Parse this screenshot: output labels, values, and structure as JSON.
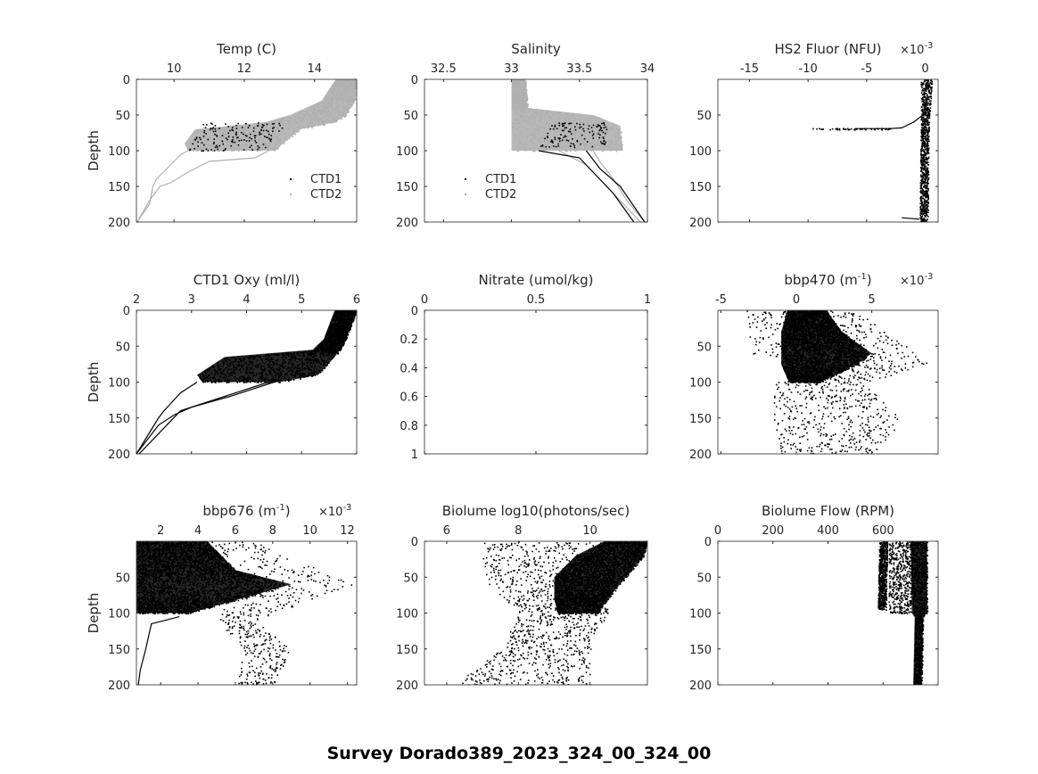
{
  "title": "Survey Dorado389_2023_324_00_324_00",
  "chart_data": [
    {
      "type": "scatter",
      "title": "Temp (C)",
      "xlabel": "Temp (C)",
      "ylabel": "Depth",
      "xlim": [
        8.93,
        15.2
      ],
      "ylim": [
        0,
        200
      ],
      "xticks": [
        10,
        12,
        14
      ],
      "yticks": [
        0,
        50,
        100,
        150,
        200
      ],
      "legend": {
        "position": "inside-lower-right",
        "entries": [
          "CTD1",
          "CTD2"
        ]
      },
      "series": [
        {
          "name": "CTD2",
          "color": "#b0b0b0",
          "band": [
            [
              0,
              14.6,
              15.2
            ],
            [
              30,
              14.2,
              15.15
            ],
            [
              50,
              13.3,
              14.9
            ],
            [
              60,
              12.6,
              14.6
            ],
            [
              70,
              10.6,
              13.6
            ],
            [
              90,
              10.3,
              13.1
            ],
            [
              100,
              10.4,
              12.9
            ]
          ],
          "n": 1400,
          "lines": [
            [
              [
                100,
                10.4
              ],
              [
                105,
                10.2
              ],
              [
                120,
                9.9
              ],
              [
                140,
                9.5
              ],
              [
                150,
                9.4
              ],
              [
                175,
                9.3
              ],
              [
                200,
                8.95
              ]
            ],
            [
              [
                100,
                12.7
              ],
              [
                110,
                12.3
              ],
              [
                115,
                11
              ],
              [
                130,
                10.4
              ],
              [
                145,
                9.9
              ],
              [
                150,
                9.6
              ],
              [
                170,
                9.3
              ],
              [
                200,
                8.95
              ]
            ]
          ]
        },
        {
          "name": "CTD1",
          "color": "#000000",
          "band": [
            [
              60,
              10.8,
              13.2
            ],
            [
              100,
              10.4,
              12.5
            ]
          ],
          "n": 150,
          "lines": []
        }
      ]
    },
    {
      "type": "scatter",
      "title": "Salinity",
      "xlabel": "Salinity",
      "ylabel": "",
      "xlim": [
        32.36,
        34
      ],
      "ylim": [
        0,
        200
      ],
      "xticks": [
        32.5,
        33,
        33.5,
        34
      ],
      "yticks": [
        0,
        50,
        100,
        150,
        200
      ],
      "legend": {
        "position": "inside-lower-left",
        "entries": [
          "CTD1",
          "CTD2"
        ]
      },
      "series": [
        {
          "name": "CTD2",
          "color": "#b0b0b0",
          "band": [
            [
              0,
              33.0,
              33.1
            ],
            [
              40,
              33.0,
              33.12
            ],
            [
              50,
              33.0,
              33.6
            ],
            [
              65,
              33.0,
              33.8
            ],
            [
              100,
              33.0,
              33.82
            ]
          ],
          "n": 1400,
          "lines": [
            [
              [
                100,
                33.35
              ],
              [
                120,
                33.55
              ],
              [
                150,
                33.7
              ],
              [
                180,
                33.85
              ],
              [
                200,
                33.95
              ]
            ],
            [
              [
                100,
                33.6
              ],
              [
                115,
                33.65
              ],
              [
                140,
                33.75
              ],
              [
                170,
                33.85
              ],
              [
                200,
                33.98
              ]
            ]
          ]
        },
        {
          "name": "CTD1",
          "color": "#000000",
          "band": [
            [
              60,
              33.3,
              33.7
            ],
            [
              95,
              33.2,
              33.7
            ]
          ],
          "n": 120,
          "lines": [
            [
              [
                100,
                33.2
              ],
              [
                110,
                33.5
              ],
              [
                130,
                33.6
              ],
              [
                160,
                33.75
              ],
              [
                200,
                33.9
              ]
            ],
            [
              [
                100,
                33.55
              ],
              [
                125,
                33.65
              ],
              [
                150,
                33.8
              ],
              [
                200,
                33.98
              ]
            ]
          ]
        }
      ]
    },
    {
      "type": "scatter",
      "title": "HS2 Fluor (NFU)",
      "xlabel": "HS2 Fluor (NFU)",
      "exponent": "-3",
      "ylabel": "",
      "xlim": [
        -17.7,
        1.1
      ],
      "ylim": [
        0,
        200
      ],
      "xticks": [
        -15,
        -10,
        -5,
        0
      ],
      "yticks": [
        50,
        100,
        150,
        200
      ],
      "series": [
        {
          "name": "HS2",
          "color": "#000000",
          "band": [
            [
              0,
              -0.4,
              0.6
            ],
            [
              60,
              -0.4,
              0.3
            ],
            [
              200,
              -0.5,
              0.2
            ]
          ],
          "n": 900,
          "lines": [
            [
              [
                69,
                -6
              ],
              [
                69,
                -3
              ],
              [
                68,
                -2
              ],
              [
                60,
                -1
              ],
              [
                50,
                -0.2
              ]
            ],
            [
              [
                194,
                -2
              ],
              [
                196,
                -0.5
              ]
            ]
          ],
          "sparse": [
            [
              68,
              -10,
              -3
            ]
          ]
        }
      ]
    },
    {
      "type": "scatter",
      "title": "CTD1 Oxy (ml/l)",
      "xlabel": "CTD1 Oxy (ml/l)",
      "ylabel": "Depth",
      "xlim": [
        2,
        6
      ],
      "ylim": [
        0,
        200
      ],
      "xticks": [
        2,
        3,
        4,
        5,
        6
      ],
      "yticks": [
        0,
        50,
        100,
        150,
        200
      ],
      "series": [
        {
          "name": "CTD1 Oxy",
          "color": "#000000",
          "band": [
            [
              0,
              5.6,
              6
            ],
            [
              40,
              5.4,
              5.8
            ],
            [
              55,
              5.2,
              5.7
            ],
            [
              65,
              3.6,
              5.6
            ],
            [
              90,
              3.1,
              5.3
            ],
            [
              100,
              3.2,
              4.6
            ]
          ],
          "n": 2200,
          "lines": [
            [
              [
                100,
                3.1
              ],
              [
                115,
                2.8
              ],
              [
                140,
                2.5
              ],
              [
                150,
                2.4
              ],
              [
                175,
                2.2
              ],
              [
                200,
                2
              ]
            ],
            [
              [
                100,
                4.5
              ],
              [
                110,
                4.1
              ],
              [
                120,
                3.7
              ],
              [
                135,
                3
              ],
              [
                145,
                2.7
              ],
              [
                160,
                2.4
              ],
              [
                200,
                2
              ]
            ],
            [
              [
                100,
                4.4
              ],
              [
                115,
                3.8
              ],
              [
                140,
                2.8
              ],
              [
                200,
                2.05
              ]
            ]
          ]
        }
      ]
    },
    {
      "type": "scatter",
      "title": "Nitrate (umol/kg)",
      "xlabel": "Nitrate (umol/kg)",
      "ylabel": "",
      "xlim": [
        0,
        1
      ],
      "ylim": [
        0,
        1
      ],
      "xticks": [
        0,
        0.5,
        1
      ],
      "yticks": [
        0,
        0.2,
        0.4,
        0.6,
        0.8,
        1
      ],
      "series": []
    },
    {
      "type": "scatter",
      "title": "bbp470 (m-1)",
      "xlabel": "bbp470 (m^-1)",
      "exponent": "-3",
      "ylabel": "",
      "xlim": [
        -5.2,
        9.4
      ],
      "ylim": [
        0,
        200
      ],
      "xticks": [
        -5,
        0,
        5
      ],
      "yticks": [
        50,
        100,
        150,
        200
      ],
      "series": [
        {
          "name": "bbp470",
          "color": "#000000",
          "band": [
            [
              0,
              -0.6,
              2
            ],
            [
              30,
              -1,
              3
            ],
            [
              60,
              -1,
              5
            ],
            [
              75,
              -1,
              4
            ],
            [
              100,
              -0.5,
              1.5
            ]
          ],
          "n": 3500,
          "sparse": [
            [
              0,
              -3.5,
              4
            ],
            [
              60,
              -3,
              8
            ],
            [
              75,
              3,
              9
            ],
            [
              100,
              -1.5,
              4.5
            ],
            [
              150,
              -1.5,
              7
            ],
            [
              200,
              -1,
              5.5
            ]
          ],
          "sn": 900,
          "lines": []
        }
      ]
    },
    {
      "type": "scatter",
      "title": "bbp676 (m-1)",
      "xlabel": "bbp676 (m^-1)",
      "exponent": "-3",
      "ylabel": "Depth",
      "xlim": [
        0.7,
        12.5
      ],
      "ylim": [
        0,
        200
      ],
      "xticks": [
        2,
        4,
        6,
        8,
        10,
        12
      ],
      "yticks": [
        50,
        100,
        150,
        200
      ],
      "series": [
        {
          "name": "bbp676",
          "color": "#000000",
          "band": [
            [
              0,
              0.7,
              4.5
            ],
            [
              40,
              0.7,
              6
            ],
            [
              60,
              0.7,
              9
            ],
            [
              75,
              0.7,
              7
            ],
            [
              100,
              0.7,
              3.5
            ]
          ],
          "n": 3500,
          "sparse": [
            [
              0,
              3,
              7
            ],
            [
              60,
              6,
              12.3
            ],
            [
              110,
              5,
              7
            ],
            [
              150,
              6.5,
              9
            ],
            [
              200,
              6,
              8
            ]
          ],
          "sn": 500,
          "lines": [
            [
              [
                105,
                3
              ],
              [
                115,
                1.5
              ],
              [
                150,
                1.2
              ],
              [
                180,
                0.9
              ],
              [
                200,
                0.8
              ]
            ]
          ]
        }
      ]
    },
    {
      "type": "scatter",
      "title": "Biolume log10(photons/sec)",
      "xlabel": "Biolume log10(photons/sec)",
      "ylabel": "",
      "xlim": [
        5.38,
        11.6
      ],
      "ylim": [
        0,
        200
      ],
      "xticks": [
        6,
        8,
        10
      ],
      "yticks": [
        0,
        50,
        100,
        150,
        200
      ],
      "series": [
        {
          "name": "Biolume",
          "color": "#000000",
          "band": [
            [
              0,
              10.4,
              11.6
            ],
            [
              20,
              9.6,
              11.5
            ],
            [
              50,
              9,
              11
            ],
            [
              80,
              9,
              10.5
            ],
            [
              100,
              9.1,
              10.2
            ]
          ],
          "n": 3000,
          "sparse": [
            [
              0,
              7,
              10.5
            ],
            [
              50,
              7,
              10.5
            ],
            [
              100,
              8,
              10.5
            ],
            [
              150,
              7.5,
              10
            ],
            [
              200,
              6.2,
              10
            ]
          ],
          "sn": 1100,
          "lines": []
        }
      ]
    },
    {
      "type": "scatter",
      "title": "Biolume Flow (RPM)",
      "xlabel": "Biolume Flow (RPM)",
      "ylabel": "",
      "xlim": [
        0,
        800
      ],
      "ylim": [
        0,
        200
      ],
      "xticks": [
        0,
        200,
        400,
        600
      ],
      "yticks": [
        0,
        50,
        100,
        150,
        200
      ],
      "series": [
        {
          "name": "Flow",
          "color": "#000000",
          "band": [
            [
              0,
              585,
              615
            ],
            [
              95,
              580,
              610
            ]
          ],
          "n": 700,
          "sparse": [
            [
              0,
              620,
              710
            ],
            [
              100,
              620,
              700
            ]
          ],
          "sn": 500,
          "lines": []
        },
        {
          "name": "Flow2",
          "color": "#000000",
          "band": [
            [
              0,
              700,
              760
            ],
            [
              100,
              705,
              760
            ],
            [
              105,
              715,
              745
            ],
            [
              200,
              710,
              740
            ]
          ],
          "n": 1200,
          "lines": []
        }
      ]
    }
  ]
}
